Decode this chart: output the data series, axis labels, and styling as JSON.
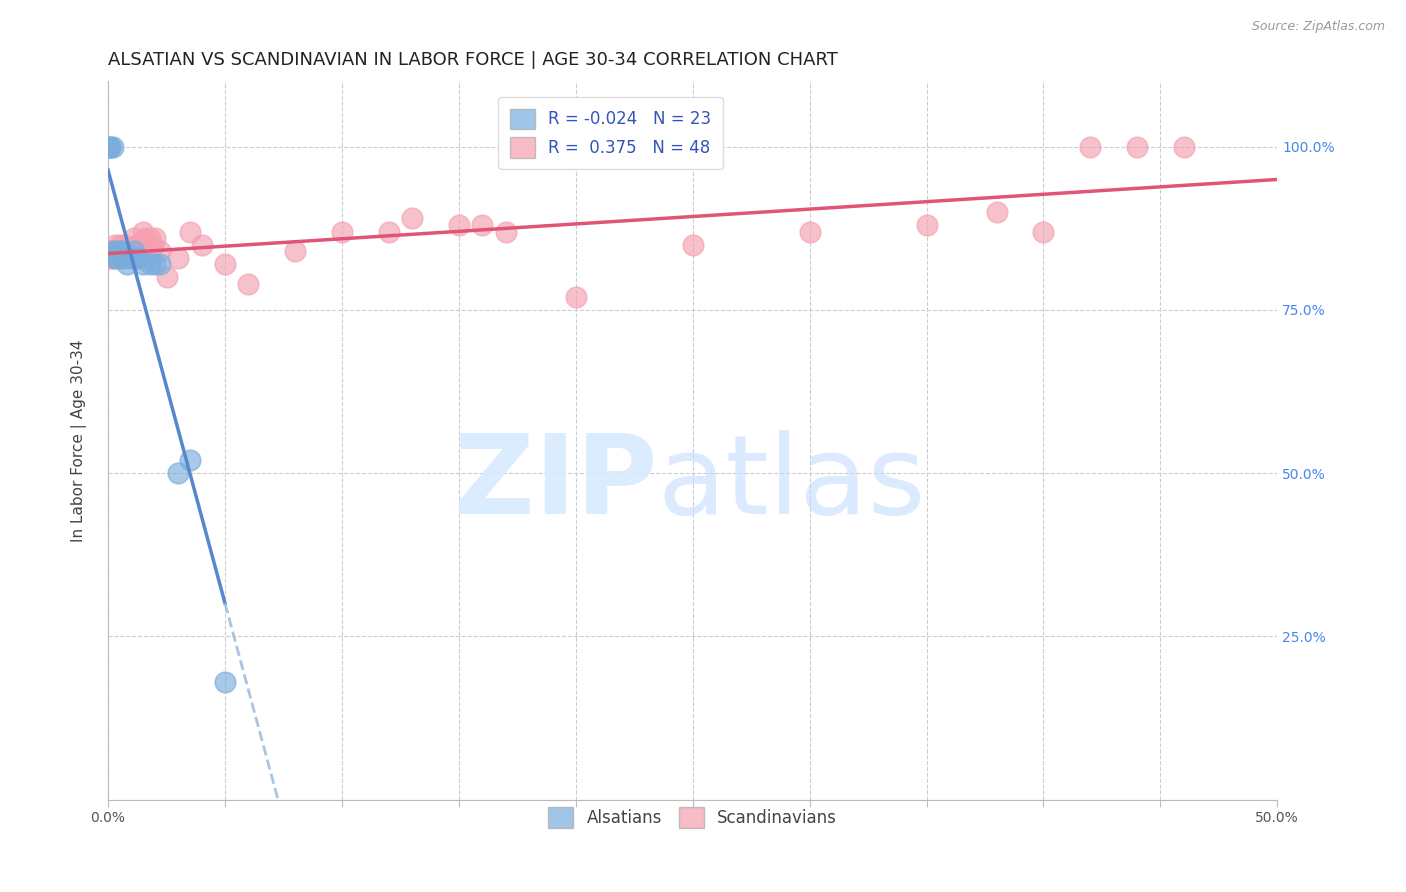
{
  "title": "ALSATIAN VS SCANDINAVIAN IN LABOR FORCE | AGE 30-34 CORRELATION CHART",
  "source": "Source: ZipAtlas.com",
  "ylabel": "In Labor Force | Age 30-34",
  "xlim": [
    0.0,
    0.5
  ],
  "ylim": [
    0.0,
    1.1
  ],
  "alsatian_R": -0.024,
  "alsatian_N": 23,
  "scandinavian_R": 0.375,
  "scandinavian_N": 48,
  "alsatian_color": "#7AADDC",
  "scandinavian_color": "#F4A0B0",
  "alsatian_line_color": "#5588CC",
  "alsatian_dash_color": "#99BBDD",
  "scandinavian_line_color": "#E05575",
  "background_color": "#ffffff",
  "alsatian_x": [
    0.0,
    0.001,
    0.001,
    0.002,
    0.002,
    0.003,
    0.003,
    0.004,
    0.005,
    0.006,
    0.007,
    0.008,
    0.01,
    0.011,
    0.012,
    0.013,
    0.015,
    0.018,
    0.02,
    0.022,
    0.03,
    0.035,
    0.05
  ],
  "alsatian_y": [
    1.0,
    1.0,
    1.0,
    1.0,
    0.84,
    0.84,
    0.83,
    0.83,
    0.84,
    0.84,
    0.83,
    0.82,
    0.83,
    0.84,
    0.83,
    0.83,
    0.82,
    0.82,
    0.82,
    0.82,
    0.5,
    0.52,
    0.18
  ],
  "scandinavian_x": [
    0.0,
    0.001,
    0.001,
    0.002,
    0.002,
    0.003,
    0.003,
    0.004,
    0.005,
    0.005,
    0.006,
    0.007,
    0.008,
    0.009,
    0.01,
    0.011,
    0.012,
    0.013,
    0.014,
    0.015,
    0.016,
    0.017,
    0.018,
    0.019,
    0.02,
    0.022,
    0.025,
    0.03,
    0.035,
    0.04,
    0.05,
    0.06,
    0.08,
    0.1,
    0.12,
    0.13,
    0.15,
    0.16,
    0.17,
    0.2,
    0.25,
    0.3,
    0.35,
    0.38,
    0.4,
    0.42,
    0.44,
    0.46
  ],
  "scandinavian_y": [
    0.83,
    0.83,
    0.84,
    0.83,
    0.84,
    0.84,
    0.85,
    0.84,
    0.83,
    0.85,
    0.84,
    0.85,
    0.84,
    0.84,
    0.84,
    0.86,
    0.85,
    0.85,
    0.84,
    0.87,
    0.86,
    0.85,
    0.86,
    0.85,
    0.86,
    0.84,
    0.8,
    0.83,
    0.87,
    0.85,
    0.82,
    0.79,
    0.84,
    0.87,
    0.87,
    0.89,
    0.88,
    0.88,
    0.87,
    0.77,
    0.85,
    0.87,
    0.88,
    0.9,
    0.87,
    1.0,
    1.0,
    1.0
  ],
  "grid_color": "#CCCCCC",
  "title_fontsize": 13,
  "label_fontsize": 11,
  "tick_fontsize": 10,
  "legend_fontsize": 12
}
